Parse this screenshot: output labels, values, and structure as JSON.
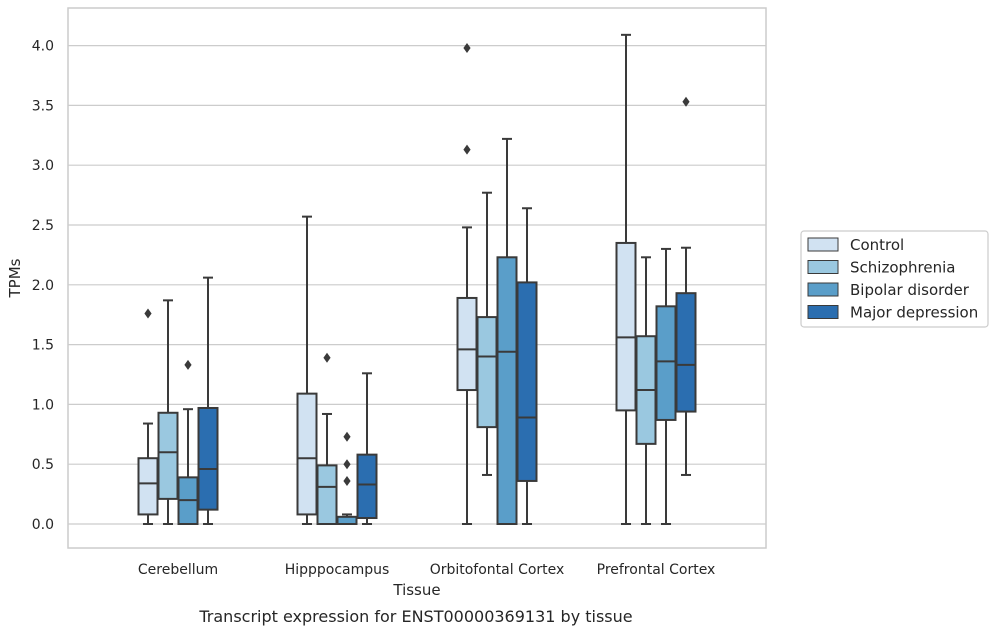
{
  "caption": "Transcript expression for ENST00000369131 by tissue",
  "chart_data": {
    "type": "boxplot",
    "xlabel": "Tissue",
    "ylabel": "TPMs",
    "ylim": [
      -0.2,
      4.3
    ],
    "yticks": [
      "0.0",
      "0.5",
      "1.0",
      "1.5",
      "2.0",
      "2.5",
      "3.0",
      "3.5",
      "4.0"
    ],
    "grid": true,
    "legend_position": "right",
    "categories": [
      "Cerebellum",
      "Hipppocampus",
      "Orbitofontal Cortex",
      "Prefrontal Cortex"
    ],
    "series": [
      {
        "name": "Control",
        "color": "#d1e2f2",
        "boxes": [
          {
            "whislo": 0.0,
            "q1": 0.08,
            "median": 0.34,
            "q3": 0.55,
            "whishi": 0.84,
            "fliers": [
              1.76
            ]
          },
          {
            "whislo": 0.0,
            "q1": 0.08,
            "median": 0.55,
            "q3": 1.09,
            "whishi": 2.57,
            "fliers": []
          },
          {
            "whislo": 0.0,
            "q1": 1.12,
            "median": 1.46,
            "q3": 1.89,
            "whishi": 2.48,
            "fliers": [
              3.13,
              3.98
            ]
          },
          {
            "whislo": 0.0,
            "q1": 0.95,
            "median": 1.56,
            "q3": 2.35,
            "whishi": 4.09,
            "fliers": []
          }
        ]
      },
      {
        "name": "Schizophrenia",
        "color": "#9ac8e0",
        "boxes": [
          {
            "whislo": 0.0,
            "q1": 0.21,
            "median": 0.6,
            "q3": 0.93,
            "whishi": 1.87,
            "fliers": []
          },
          {
            "whislo": 0.0,
            "q1": 0.0,
            "median": 0.31,
            "q3": 0.49,
            "whishi": 0.92,
            "fliers": [
              1.39
            ]
          },
          {
            "whislo": 0.41,
            "q1": 0.81,
            "median": 1.4,
            "q3": 1.73,
            "whishi": 2.77,
            "fliers": []
          },
          {
            "whislo": 0.0,
            "q1": 0.67,
            "median": 1.12,
            "q3": 1.57,
            "whishi": 2.23,
            "fliers": []
          }
        ]
      },
      {
        "name": "Bipolar disorder",
        "color": "#5a9ec9",
        "boxes": [
          {
            "whislo": 0.0,
            "q1": 0.0,
            "median": 0.2,
            "q3": 0.39,
            "whishi": 0.96,
            "fliers": [
              1.33
            ]
          },
          {
            "whislo": 0.0,
            "q1": 0.0,
            "median": 0.0,
            "q3": 0.06,
            "whishi": 0.08,
            "fliers": [
              0.36,
              0.5,
              0.73
            ]
          },
          {
            "whislo": 0.0,
            "q1": 0.0,
            "median": 1.44,
            "q3": 2.23,
            "whishi": 3.22,
            "fliers": []
          },
          {
            "whislo": 0.0,
            "q1": 0.87,
            "median": 1.36,
            "q3": 1.82,
            "whishi": 2.3,
            "fliers": []
          }
        ]
      },
      {
        "name": "Major depression",
        "color": "#2b6eb0",
        "boxes": [
          {
            "whislo": 0.0,
            "q1": 0.12,
            "median": 0.46,
            "q3": 0.97,
            "whishi": 2.06,
            "fliers": []
          },
          {
            "whislo": 0.0,
            "q1": 0.05,
            "median": 0.33,
            "q3": 0.58,
            "whishi": 1.26,
            "fliers": []
          },
          {
            "whislo": 0.0,
            "q1": 0.36,
            "median": 0.89,
            "q3": 2.02,
            "whishi": 2.64,
            "fliers": []
          },
          {
            "whislo": 0.41,
            "q1": 0.94,
            "median": 1.33,
            "q3": 1.93,
            "whishi": 2.31,
            "fliers": [
              3.53
            ]
          }
        ]
      }
    ]
  }
}
